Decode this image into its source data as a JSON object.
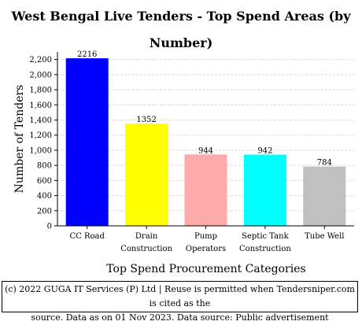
{
  "chart_data": {
    "type": "bar",
    "title_line1": "West Bengal Live Tenders - Top Spend Areas (by",
    "title_line2": "Number)",
    "xlabel": "Top Spend Procurement Categories",
    "ylabel": "Number of Tenders",
    "categories": [
      [
        "CC Road"
      ],
      [
        "Drain",
        "Construction"
      ],
      [
        "Pump",
        "Operators"
      ],
      [
        "Septic Tank",
        "Construction"
      ],
      [
        "Tube Well"
      ]
    ],
    "values": [
      2216,
      1352,
      944,
      942,
      784
    ],
    "value_labels": [
      "2216",
      "1352",
      "944",
      "942",
      "784"
    ],
    "colors": [
      "#0000ff",
      "#ffff00",
      "#ffaaaa",
      "#00ffff",
      "#c0c0c0"
    ],
    "ylim": [
      0,
      2300
    ],
    "yticks": [
      0,
      200,
      400,
      600,
      800,
      1000,
      1200,
      1400,
      1600,
      1800,
      2000,
      2200
    ],
    "ytick_labels": [
      "0",
      "200",
      "400",
      "600",
      "800",
      "1,000",
      "1,200",
      "1,400",
      "1,600",
      "1,800",
      "2,000",
      "2,200"
    ],
    "grid": true
  },
  "footer": {
    "line1": "(c) 2022 GUGA IT Services (P) Ltd | Reuse is permitted when Tendersniper.com is cited as the",
    "line2": "source. Data as on 01 Nov 2023. Data source: Public advertisement"
  }
}
